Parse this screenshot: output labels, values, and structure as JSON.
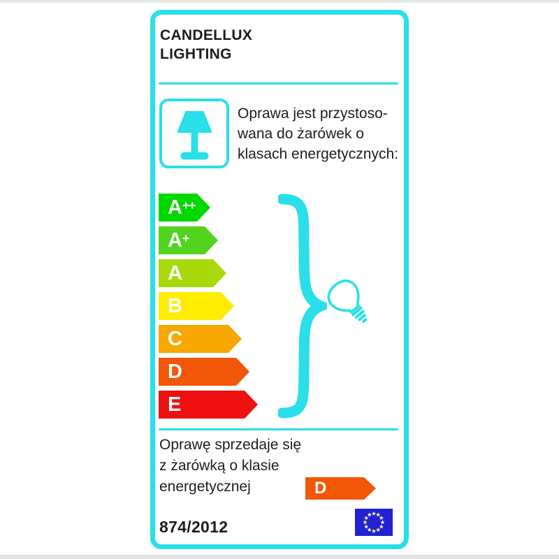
{
  "brand": {
    "line1": "CANDELLUX",
    "line2": "LIGHTING"
  },
  "intro": {
    "lines": [
      "Oprawa jest przystoso-",
      "wana do żarówek o",
      "klasach energetycznych:"
    ]
  },
  "energy_scale": {
    "classes": [
      {
        "label": "A",
        "sup": "++",
        "color": "#00d800",
        "width": 74
      },
      {
        "label": "A",
        "sup": "+",
        "color": "#52d41f",
        "width": 85
      },
      {
        "label": "A",
        "sup": "",
        "color": "#a8da0b",
        "width": 97
      },
      {
        "label": "B",
        "sup": "",
        "color": "#ffec00",
        "width": 108
      },
      {
        "label": "C",
        "sup": "",
        "color": "#f6a800",
        "width": 119
      },
      {
        "label": "D",
        "sup": "",
        "color": "#f25608",
        "width": 130
      },
      {
        "label": "E",
        "sup": "",
        "color": "#ed1111",
        "width": 142
      }
    ]
  },
  "sold_note": {
    "lines": [
      "Oprawę sprzedaje się",
      "z żarówką o klasie",
      "energetycznej"
    ]
  },
  "sold_with": {
    "label": "D",
    "color": "#f25607"
  },
  "regulation": "874/2012",
  "colors": {
    "accent_cyan": "#29dfe9",
    "eu_flag_blue": "#2121d5",
    "eu_star_yellow": "#fff3b0",
    "text_black": "#1d1d1d"
  },
  "icons": {
    "lamp": "table-lamp-icon",
    "brace": "curly-brace-right-icon",
    "bulb": "light-bulb-outline-icon",
    "flag": "eu-flag-icon"
  }
}
